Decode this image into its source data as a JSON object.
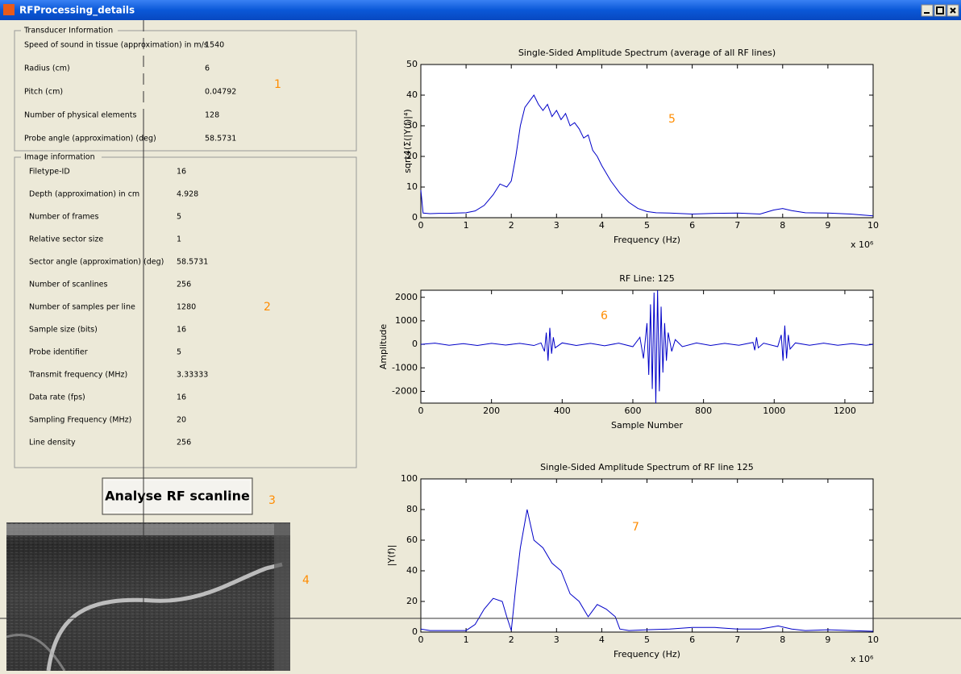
{
  "window": {
    "title": "RFProcessing_details"
  },
  "transducer_panel": {
    "title": "Transducer Information",
    "rows": [
      [
        "Speed of sound in tissue (approximation) in m/s",
        1540
      ],
      [
        "Radius (cm)",
        6
      ],
      [
        "Pitch (cm)",
        0.04792
      ],
      [
        "Number of physical elements",
        128
      ],
      [
        "Probe angle (approximation) (deg)",
        58.5731
      ]
    ]
  },
  "image_panel": {
    "title": "Image information",
    "rows": [
      [
        "Filetype-ID",
        16
      ],
      [
        "Depth (approximation) in cm",
        4.928
      ],
      [
        "Number of frames",
        5
      ],
      [
        "Relative sector size",
        1
      ],
      [
        "Sector angle (approximation) (deg)",
        58.5731
      ],
      [
        "Number of scanlines",
        256
      ],
      [
        "Number of samples per line",
        1280
      ],
      [
        "Sample size (bits)",
        16
      ],
      [
        "Probe identifier",
        5
      ],
      [
        "Transmit frequency (MHz)",
        3.33333
      ],
      [
        "Data rate (fps)",
        16
      ],
      [
        "Sampling Frequency (MHz)",
        20
      ],
      [
        "Line density",
        256
      ]
    ]
  },
  "button": {
    "label": "Analyse RF scanline"
  },
  "annotations": [
    "1",
    "2",
    "3",
    "4",
    "5",
    "6",
    "7"
  ],
  "chart_data": [
    {
      "type": "line",
      "title": "Single-Sided Amplitude Spectrum (average of all RF lines)",
      "x_label": "Frequency (Hz)",
      "y_label": "sqrt4(Σ(|Y(f)|⁴)",
      "x_scale_label": "x 10⁶",
      "xlim": [
        0,
        10
      ],
      "xticks": [
        0,
        1,
        2,
        3,
        4,
        5,
        6,
        7,
        8,
        9,
        10
      ],
      "ylim": [
        0,
        50
      ],
      "yticks": [
        0,
        10,
        20,
        30,
        40,
        50
      ],
      "grid": false,
      "color": "#0000c8",
      "x": [
        0,
        0.05,
        0.2,
        0.4,
        0.6,
        0.8,
        1,
        1.2,
        1.4,
        1.6,
        1.75,
        1.9,
        2,
        2.1,
        2.2,
        2.3,
        2.4,
        2.5,
        2.6,
        2.7,
        2.8,
        2.9,
        3,
        3.1,
        3.2,
        3.3,
        3.4,
        3.5,
        3.6,
        3.7,
        3.8,
        3.9,
        4,
        4.2,
        4.4,
        4.6,
        4.8,
        5,
        5.2,
        5.5,
        6,
        6.5,
        7,
        7.5,
        7.8,
        8,
        8.2,
        8.5,
        9,
        9.5,
        10
      ],
      "values": [
        9,
        1.5,
        1.3,
        1.4,
        1.4,
        1.5,
        1.6,
        2.2,
        4,
        7.5,
        11,
        10,
        12,
        20,
        30,
        36,
        38,
        40,
        37,
        35,
        37,
        33,
        35,
        32,
        34,
        30,
        31,
        29,
        26,
        27,
        22,
        20,
        17,
        12,
        8,
        5,
        3,
        2,
        1.6,
        1.5,
        1.2,
        1.4,
        1.5,
        1.2,
        2.5,
        3,
        2.3,
        1.6,
        1.5,
        1.2,
        0.6
      ]
    },
    {
      "type": "line",
      "title": "RF Line: 125",
      "x_label": "Sample Number",
      "y_label": "Amplitude",
      "xlim": [
        0,
        1280
      ],
      "xticks": [
        0,
        200,
        400,
        600,
        800,
        1000,
        1200
      ],
      "ylim": [
        -2500,
        2300
      ],
      "yticks": [
        -2000,
        -1000,
        0,
        1000,
        2000
      ],
      "grid": false,
      "color": "#0000c8",
      "x": [
        0,
        40,
        80,
        120,
        160,
        200,
        240,
        280,
        320,
        340,
        350,
        355,
        360,
        365,
        370,
        375,
        380,
        400,
        440,
        480,
        520,
        560,
        600,
        620,
        630,
        640,
        645,
        650,
        655,
        660,
        665,
        670,
        675,
        680,
        685,
        690,
        695,
        700,
        710,
        720,
        740,
        780,
        820,
        860,
        900,
        940,
        945,
        950,
        955,
        970,
        1010,
        1020,
        1025,
        1030,
        1035,
        1040,
        1045,
        1060,
        1100,
        1140,
        1180,
        1220,
        1260,
        1280
      ],
      "values": [
        0,
        50,
        -40,
        30,
        -50,
        40,
        -30,
        40,
        -50,
        60,
        -300,
        500,
        -700,
        700,
        -400,
        300,
        -150,
        60,
        -50,
        40,
        -60,
        50,
        -100,
        300,
        -600,
        900,
        -1300,
        1700,
        -1900,
        2200,
        -2500,
        2300,
        -2000,
        1600,
        -1200,
        900,
        -700,
        500,
        -300,
        200,
        -100,
        60,
        -50,
        40,
        -40,
        80,
        -250,
        300,
        -150,
        50,
        -100,
        400,
        -700,
        800,
        -600,
        400,
        -200,
        60,
        -40,
        50,
        -40,
        30,
        -40,
        0
      ]
    },
    {
      "type": "line",
      "title": "Single-Sided Amplitude Spectrum of RF line 125",
      "x_label": "Frequency (Hz)",
      "y_label": "|Y(f)|",
      "x_scale_label": "x 10⁶",
      "xlim": [
        0,
        10
      ],
      "xticks": [
        0,
        1,
        2,
        3,
        4,
        5,
        6,
        7,
        8,
        9,
        10
      ],
      "ylim": [
        0,
        100
      ],
      "yticks": [
        0,
        20,
        40,
        60,
        80,
        100
      ],
      "grid": false,
      "color": "#0000c8",
      "x": [
        0,
        0.2,
        0.5,
        0.8,
        1,
        1.2,
        1.4,
        1.6,
        1.8,
        1.9,
        2,
        2.1,
        2.2,
        2.35,
        2.5,
        2.7,
        2.9,
        3.1,
        3.3,
        3.5,
        3.7,
        3.9,
        4.1,
        4.3,
        4.4,
        4.6,
        5,
        5.5,
        6,
        6.5,
        7,
        7.5,
        7.9,
        8.2,
        8.5,
        9,
        9.5,
        10
      ],
      "values": [
        2,
        1,
        1,
        1,
        1,
        5,
        15,
        22,
        20,
        10,
        1,
        30,
        55,
        80,
        60,
        55,
        45,
        40,
        25,
        20,
        10,
        18,
        15,
        10,
        2,
        1,
        1.5,
        2,
        3,
        3,
        2,
        2,
        4,
        2,
        1,
        1.5,
        1,
        0.5
      ]
    }
  ]
}
